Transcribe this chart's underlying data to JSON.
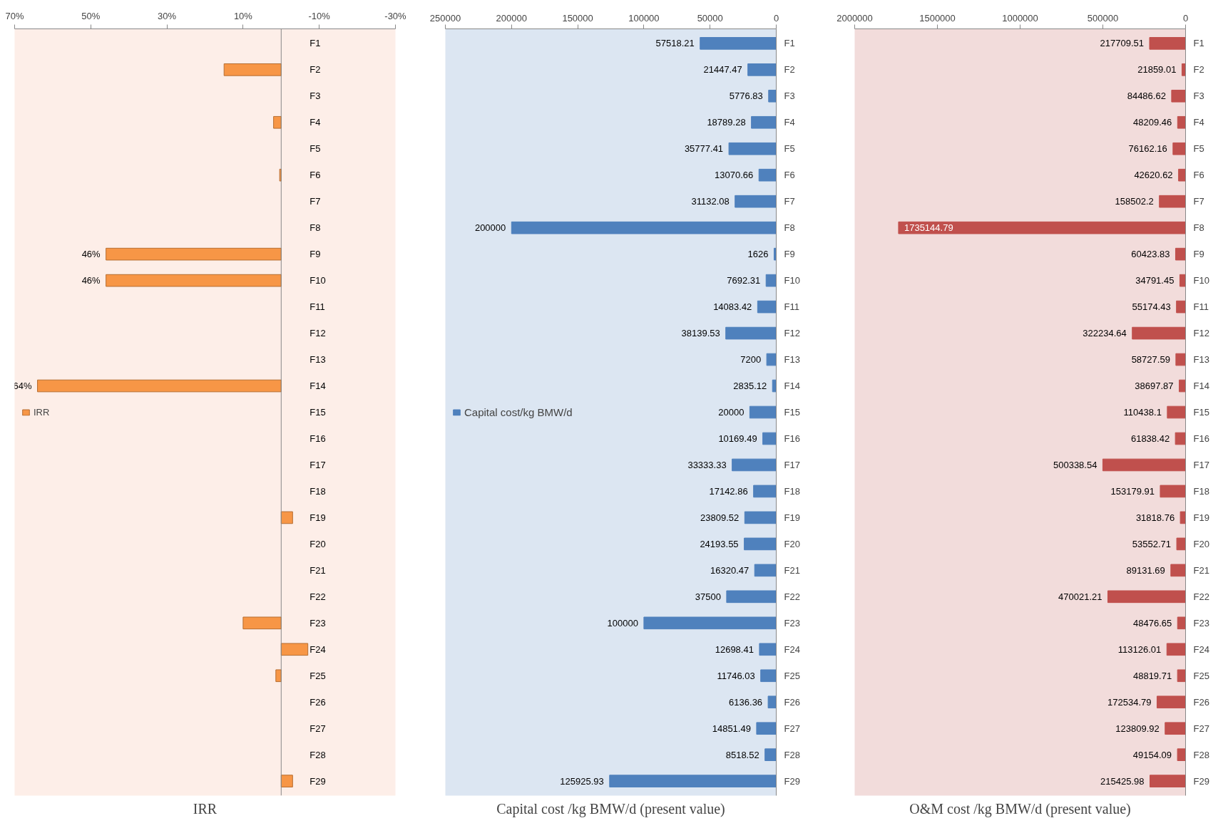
{
  "chart_data": [
    {
      "type": "bar",
      "orientation": "horizontal",
      "xlabel": "IRR",
      "categories": [
        "F1",
        "F2",
        "F3",
        "F4",
        "F5",
        "F6",
        "F7",
        "F8",
        "F9",
        "F10",
        "F11",
        "F12",
        "F13",
        "F14",
        "F15",
        "F16",
        "F17",
        "F18",
        "F19",
        "F20",
        "F21",
        "F22",
        "F23",
        "F24",
        "F25",
        "F26",
        "F27",
        "F28",
        "F29"
      ],
      "series": [
        {
          "name": "IRR",
          "color": "#f79646",
          "values": [
            null,
            15,
            null,
            2,
            null,
            0.4,
            null,
            null,
            46,
            46,
            null,
            null,
            null,
            64,
            null,
            null,
            null,
            null,
            -3,
            null,
            null,
            null,
            10,
            -7,
            1.4,
            null,
            null,
            null,
            -3
          ],
          "value_labels": [
            null,
            null,
            null,
            null,
            null,
            null,
            null,
            null,
            "46%",
            "46%",
            null,
            null,
            null,
            "64%",
            null,
            null,
            null,
            null,
            null,
            null,
            null,
            null,
            null,
            null,
            null,
            null,
            null,
            null,
            null
          ]
        }
      ],
      "xlim": [
        70,
        -30
      ],
      "xticks": [
        {
          "value": 70,
          "label": "70%"
        },
        {
          "value": 50,
          "label": "50%"
        },
        {
          "value": 30,
          "label": "30%"
        },
        {
          "value": 10,
          "label": "10%"
        },
        {
          "value": -10,
          "label": "-10%"
        },
        {
          "value": -30,
          "label": "-30%"
        }
      ],
      "legend": "left",
      "grid": false
    },
    {
      "type": "bar",
      "orientation": "horizontal",
      "xlabel": "Capital cost /kg BMW/d (present value)",
      "categories": [
        "F1",
        "F2",
        "F3",
        "F4",
        "F5",
        "F6",
        "F7",
        "F8",
        "F9",
        "F10",
        "F11",
        "F12",
        "F13",
        "F14",
        "F15",
        "F16",
        "F17",
        "F18",
        "F19",
        "F20",
        "F21",
        "F22",
        "F23",
        "F24",
        "F25",
        "F26",
        "F27",
        "F28",
        "F29"
      ],
      "series": [
        {
          "name": "Capital cost/kg BMW/d",
          "color": "#4f81bd",
          "values": [
            57518.21,
            21447.47,
            5776.83,
            18789.28,
            35777.41,
            13070.66,
            31132.08,
            200000,
            1626,
            7692.31,
            14083.42,
            38139.53,
            7200,
            2835.12,
            20000,
            10169.49,
            33333.33,
            17142.86,
            23809.52,
            24193.55,
            16320.47,
            37500,
            100000,
            12698.41,
            11746.03,
            6136.36,
            14851.49,
            8518.52,
            125925.93
          ]
        }
      ],
      "xlim": [
        250000,
        0
      ],
      "xticks": [
        250000,
        200000,
        150000,
        100000,
        50000,
        0
      ],
      "data_labels": true,
      "legend": "left",
      "grid": false
    },
    {
      "type": "bar",
      "orientation": "horizontal",
      "xlabel": "O&M cost /kg BMW/d (present value)",
      "categories": [
        "F1",
        "F2",
        "F3",
        "F4",
        "F5",
        "F6",
        "F7",
        "F8",
        "F9",
        "F10",
        "F11",
        "F12",
        "F13",
        "F14",
        "F15",
        "F16",
        "F17",
        "F18",
        "F19",
        "F20",
        "F21",
        "F22",
        "F23",
        "F24",
        "F25",
        "F26",
        "F27",
        "F28",
        "F29"
      ],
      "series": [
        {
          "color": "#c0504d",
          "values": [
            217709.51,
            21859.01,
            84486.62,
            48209.46,
            76162.16,
            42620.62,
            158502.2,
            1735144.79,
            60423.83,
            34791.45,
            55174.43,
            322234.64,
            58727.59,
            38697.87,
            110438.1,
            61838.42,
            500338.54,
            153179.91,
            31818.76,
            53552.71,
            89131.69,
            470021.21,
            48476.65,
            113126.01,
            48819.71,
            172534.79,
            123809.92,
            49154.09,
            215425.98
          ]
        }
      ],
      "xlim": [
        2000000,
        0
      ],
      "xticks": [
        2000000,
        1500000,
        1000000,
        500000,
        0
      ],
      "data_labels": true,
      "legend": false,
      "grid": false
    }
  ]
}
